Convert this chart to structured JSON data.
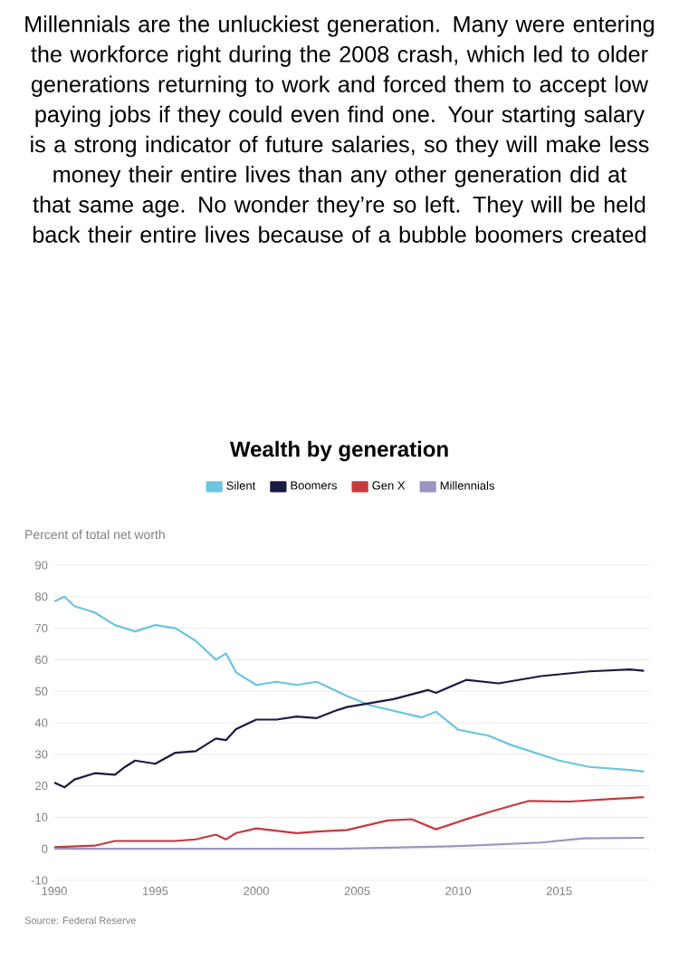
{
  "chart_data": {
    "type": "line",
    "title": "Wealth by generation",
    "ylabel": "Percent of total net worth",
    "annotations": [
      "Millennials are the unluckiest generation. Many were entering the workforce right during the 2008 crash, which led to older generations returning to work and forced them to accept low paying jobs if they could even find one. Your starting salary is a strong indicator of future salaries, so they will make less money their entire lives than any other generation did at that same age. No wonder they’re so left. They will be held back their entire lives because of a bubble boomers created",
      "Source: Federal Reserve"
    ],
    "xlim": [
      1990,
      2019.5
    ],
    "xticks": [
      1990,
      1995,
      2000,
      2005,
      2010,
      2015
    ],
    "ylim": [
      -10,
      90
    ],
    "yticks": [
      -10,
      0,
      10,
      20,
      30,
      40,
      50,
      60,
      70,
      80,
      90
    ],
    "grid": "y",
    "legend": "top",
    "marker": "none",
    "line_style": "solid",
    "series": [
      {
        "name": "Silent",
        "color": "#6cc4e0",
        "x": [
          1990,
          1990.5,
          1991,
          1992,
          1993,
          1994,
          1995,
          1996,
          1997,
          1998,
          1998.5,
          1999,
          2000,
          2001,
          2002,
          2003,
          2004,
          2004.5,
          2005.6,
          2008.2,
          2008.9,
          2010,
          2011.5,
          2012.6,
          2015,
          2016.5,
          2018.5,
          2019.2
        ],
        "values": [
          78.5,
          80,
          77,
          75,
          71,
          69,
          71,
          70,
          66,
          60,
          62,
          56,
          52,
          53,
          52,
          53,
          50,
          48.5,
          45.6,
          41.7,
          43.5,
          37.8,
          35.9,
          33,
          28,
          26,
          25,
          24.5
        ]
      },
      {
        "name": "Boomers",
        "color": "#1b1a45",
        "x": [
          1990,
          1990.5,
          1991,
          1992,
          1993,
          1993.5,
          1994,
          1995,
          1996,
          1997,
          1998,
          1998.5,
          1999,
          2000,
          2001,
          2002,
          2003,
          2004,
          2004.5,
          2006.8,
          2008.5,
          2008.9,
          2010.4,
          2012,
          2014.1,
          2016.5,
          2018.5,
          2019.2
        ],
        "values": [
          21,
          19.5,
          22,
          24,
          23.5,
          26,
          28,
          27,
          30.5,
          31,
          35,
          34.5,
          38,
          41,
          41,
          42,
          41.5,
          44,
          45,
          47.5,
          50.4,
          49.5,
          53.6,
          52.5,
          54.8,
          56.3,
          56.9,
          56.5
        ]
      },
      {
        "name": "Gen X",
        "color": "#c8383f",
        "x": [
          1990,
          1992,
          1993,
          1995,
          1996,
          1997,
          1998,
          1998.5,
          1999,
          2000,
          2002,
          2003,
          2004.5,
          2006.5,
          2007.7,
          2008.9,
          2010.2,
          2011.7,
          2013.5,
          2015.5,
          2017.6,
          2019.2
        ],
        "values": [
          0.5,
          1,
          2.5,
          2.5,
          2.5,
          3,
          4.5,
          3,
          5,
          6.5,
          5,
          5.5,
          6,
          9,
          9.4,
          6.2,
          9,
          12,
          15.2,
          15,
          15.8,
          16.4
        ]
      },
      {
        "name": "Millennials",
        "color": "#9e93c2",
        "x": [
          1990,
          2004,
          2009.7,
          2014.1,
          2016.2,
          2019.2
        ],
        "values": [
          0,
          0,
          0.8,
          2,
          3.3,
          3.5
        ]
      }
    ]
  }
}
